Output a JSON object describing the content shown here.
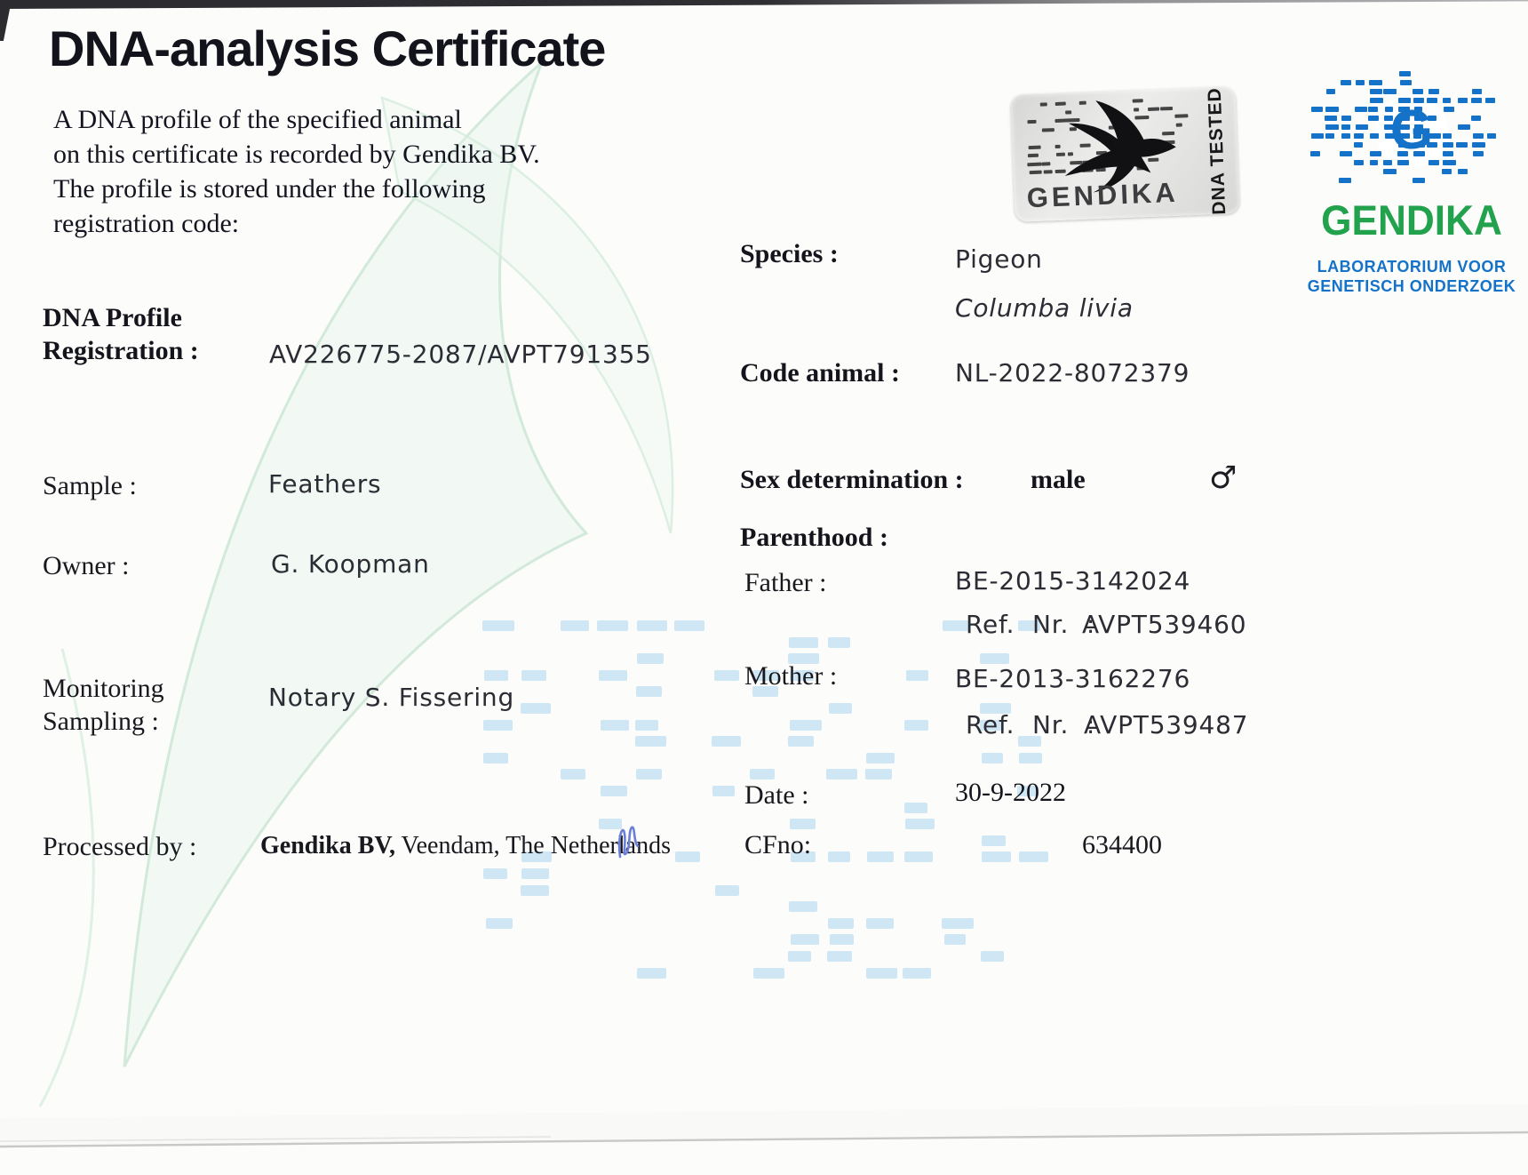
{
  "title": "DNA-analysis Certificate",
  "intro": {
    "lines": [
      "A DNA profile of the specified animal",
      "on this certificate is recorded by Gendika BV.",
      "The profile is stored under the following",
      "registration code:"
    ]
  },
  "fields": {
    "dna_profile_label_1": "DNA Profile",
    "dna_profile_label_2": "Registration :",
    "dna_profile_value": "AV226775-2087/AVPT791355",
    "sample_label": "Sample :",
    "sample_value": "Feathers",
    "owner_label": "Owner :",
    "owner_value": "G. Koopman",
    "monitoring_label_1": "Monitoring",
    "monitoring_label_2": "Sampling :",
    "monitoring_value": "Notary S. Fissering",
    "processed_label": "Processed by :",
    "processed_value_bold": "Gendika BV,",
    "processed_value_rest": " Veendam, The Netherlands"
  },
  "right": {
    "species_label": "Species :",
    "species_value": "Pigeon",
    "species_latin": "Columba livia",
    "code_animal_label": "Code animal :",
    "code_animal_value": "NL-2022-8072379",
    "sex_label": "Sex determination :",
    "sex_value": "male",
    "sex_symbol": "♂",
    "parenthood_label": "Parenthood :",
    "father_label": "Father :",
    "father_value": "BE-2015-3142024",
    "father_ref_label": "Ref. Nr. :",
    "father_ref_value": "AVPT539460",
    "mother_label": "Mother :",
    "mother_value": "BE-2013-3162276",
    "mother_ref_label": "Ref. Nr. :",
    "mother_ref_value": "AVPT539487",
    "date_label": "Date :",
    "date_value": "30-9-2022",
    "cfno_label": "CFno:",
    "cfno_value": "634400"
  },
  "stamp": {
    "brand": "GENDIKA",
    "side_text": "DNA TESTED"
  },
  "logo": {
    "letter": "G",
    "brand": "GENDIKA",
    "subline1": "LABORATORIUM VOOR",
    "subline2": "GENETISCH ONDERZOEK"
  },
  "colors": {
    "logo_blue": "#1472c8",
    "logo_green": "#23a24d",
    "gel_blue": "#cfe7f5",
    "signature_blue": "#6b7fd7",
    "stamp_gray": "#e3e3e1"
  }
}
